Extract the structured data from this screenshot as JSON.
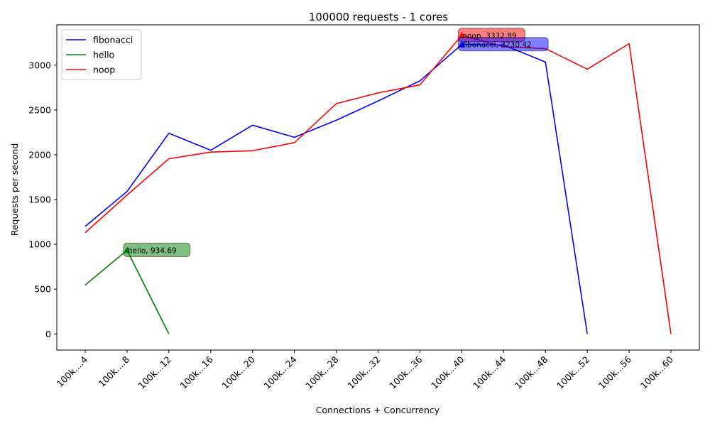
{
  "chart_data": {
    "type": "line",
    "title": "100000 requests - 1 cores",
    "xlabel": "Connections + Concurrency",
    "ylabel": "Requests per second",
    "categories": [
      "100k....4",
      "100k....8",
      "100k...12",
      "100k...16",
      "100k...20",
      "100k...24",
      "100k...28",
      "100k...32",
      "100k...36",
      "100k...40",
      "100k...44",
      "100k...48",
      "100k...52",
      "100k...56",
      "100k...60"
    ],
    "ylim": [
      -180,
      3450
    ],
    "yticks": [
      0,
      500,
      1000,
      1500,
      2000,
      2500,
      3000
    ],
    "grid": false,
    "legend_position": "top-left",
    "series": [
      {
        "name": "fibonacci",
        "color": "#0000ff",
        "values": [
          1200,
          1590,
          2240,
          2050,
          2330,
          2195,
          2385,
          2600,
          2825,
          3230.42,
          3225,
          3035,
          0,
          null,
          null
        ]
      },
      {
        "name": "hello",
        "color": "#008000",
        "values": [
          545,
          934.69,
          0,
          null,
          null,
          null,
          null,
          null,
          null,
          null,
          null,
          null,
          null,
          null,
          null
        ]
      },
      {
        "name": "noop",
        "color": "#ff0000",
        "values": [
          1130,
          1550,
          1955,
          2030,
          2045,
          2135,
          2570,
          2690,
          2780,
          3332.89,
          3205,
          3185,
          2955,
          3240,
          0
        ]
      }
    ],
    "annotations": [
      {
        "text": "noop, 3332.89",
        "series": 2,
        "index": 9,
        "color": "#ff0000"
      },
      {
        "text": "fibonacci, 3230.42",
        "series": 0,
        "index": 9,
        "color": "#0000ff"
      },
      {
        "text": "hello, 934.69",
        "series": 1,
        "index": 1,
        "color": "#008000"
      }
    ]
  }
}
